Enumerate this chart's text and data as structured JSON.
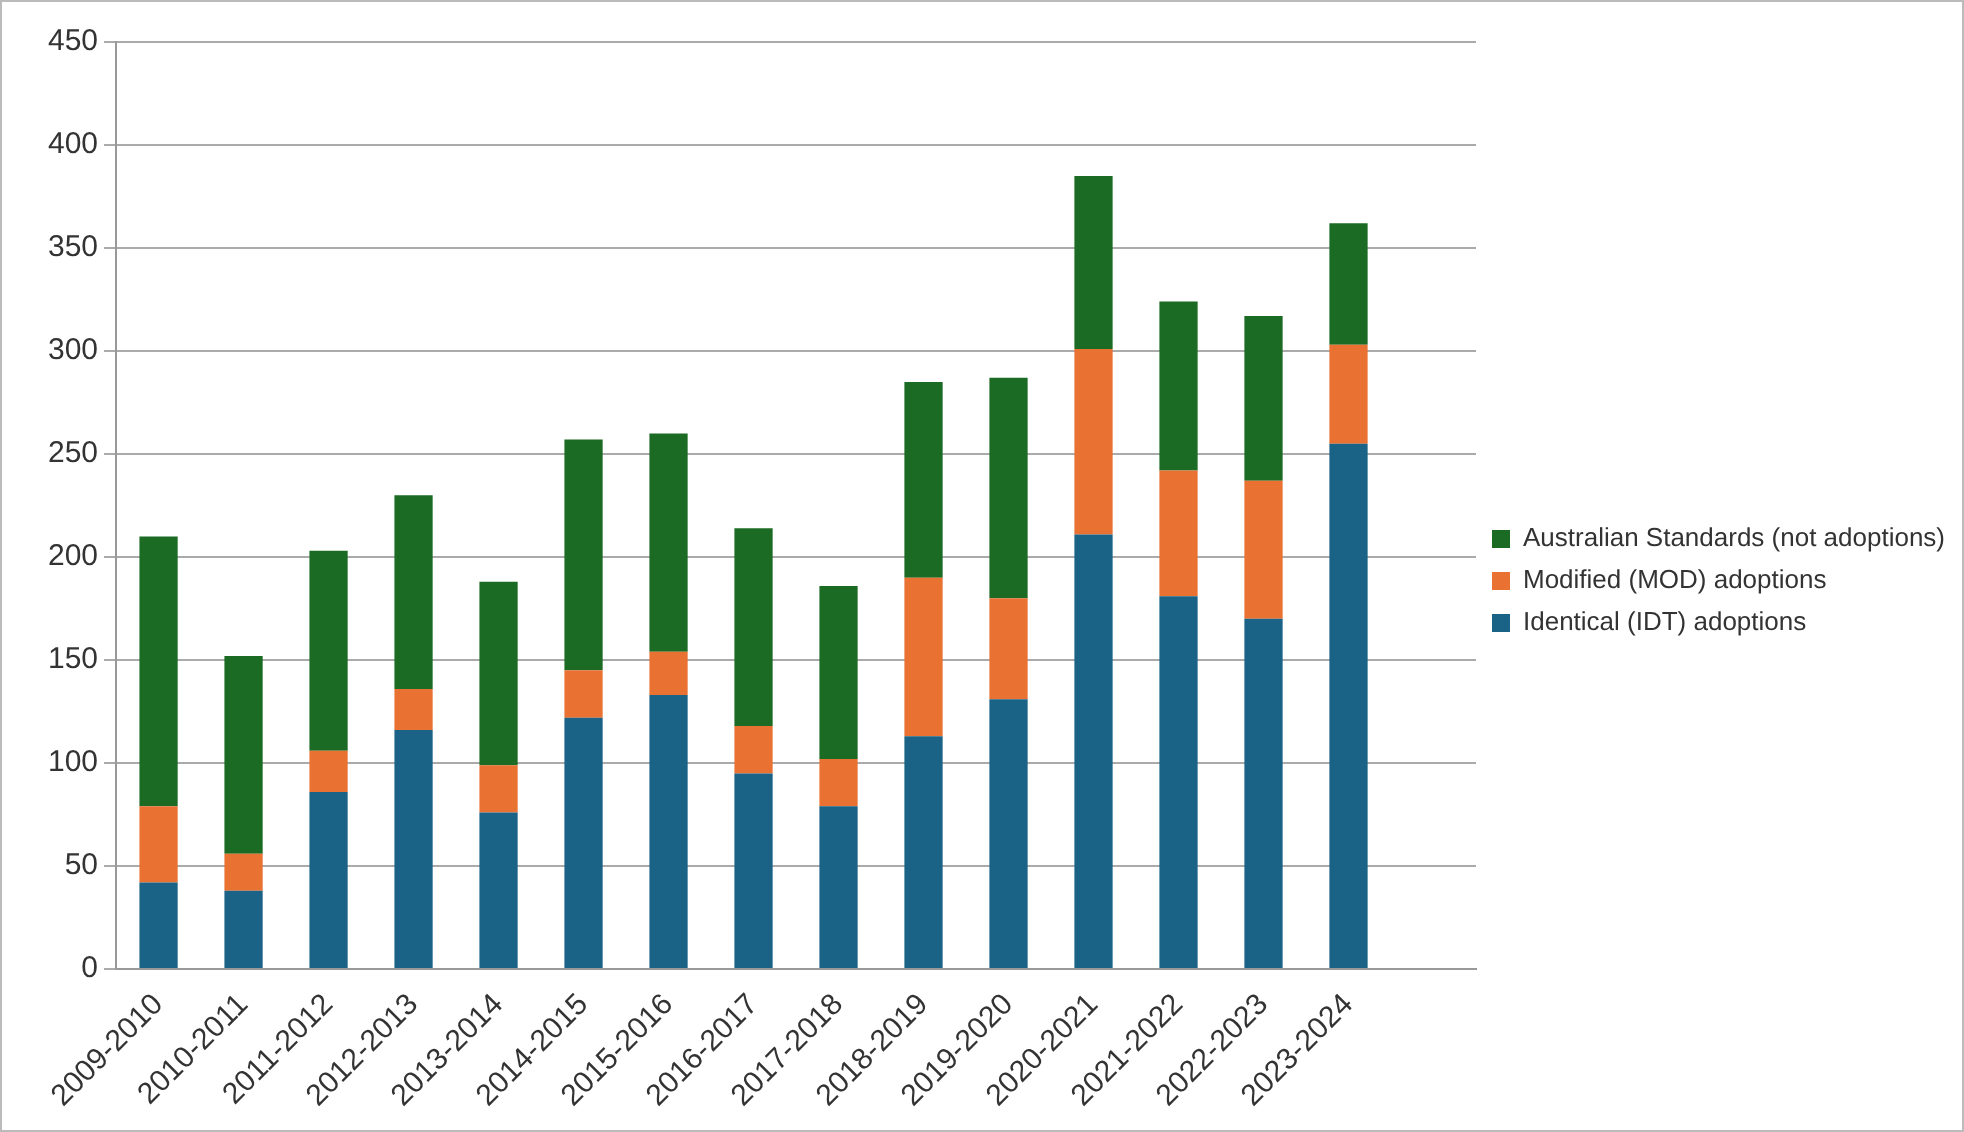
{
  "chart_data": {
    "type": "bar",
    "stacked": true,
    "categories": [
      "2009-2010",
      "2010-2011",
      "2011-2012",
      "2012-2013",
      "2013-2014",
      "2014-2015",
      "2015-2016",
      "2016-2017",
      "2017-2018",
      "2018-2019",
      "2019-2020",
      "2020-2021",
      "2021-2022",
      "2022-2023",
      "2023-2024",
      null
    ],
    "series": [
      {
        "name": "Identical (IDT) adoptions",
        "color": "#1a6286",
        "values": [
          42,
          38,
          86,
          116,
          76,
          122,
          133,
          95,
          79,
          113,
          131,
          211,
          181,
          170,
          255,
          null
        ]
      },
      {
        "name": "Modified (MOD) adoptions",
        "color": "#e97132",
        "values": [
          37,
          18,
          20,
          20,
          23,
          23,
          21,
          23,
          23,
          77,
          49,
          90,
          61,
          67,
          48,
          null
        ]
      },
      {
        "name": "Australian Standards (not adoptions)",
        "color": "#1c6b24",
        "values": [
          131,
          96,
          97,
          94,
          89,
          112,
          106,
          96,
          84,
          95,
          107,
          84,
          82,
          80,
          59,
          null
        ]
      }
    ],
    "ylim": [
      0,
      450
    ],
    "yticks": [
      0,
      50,
      100,
      150,
      200,
      250,
      300,
      350,
      400,
      450
    ],
    "grid": "y",
    "legend": "right"
  }
}
